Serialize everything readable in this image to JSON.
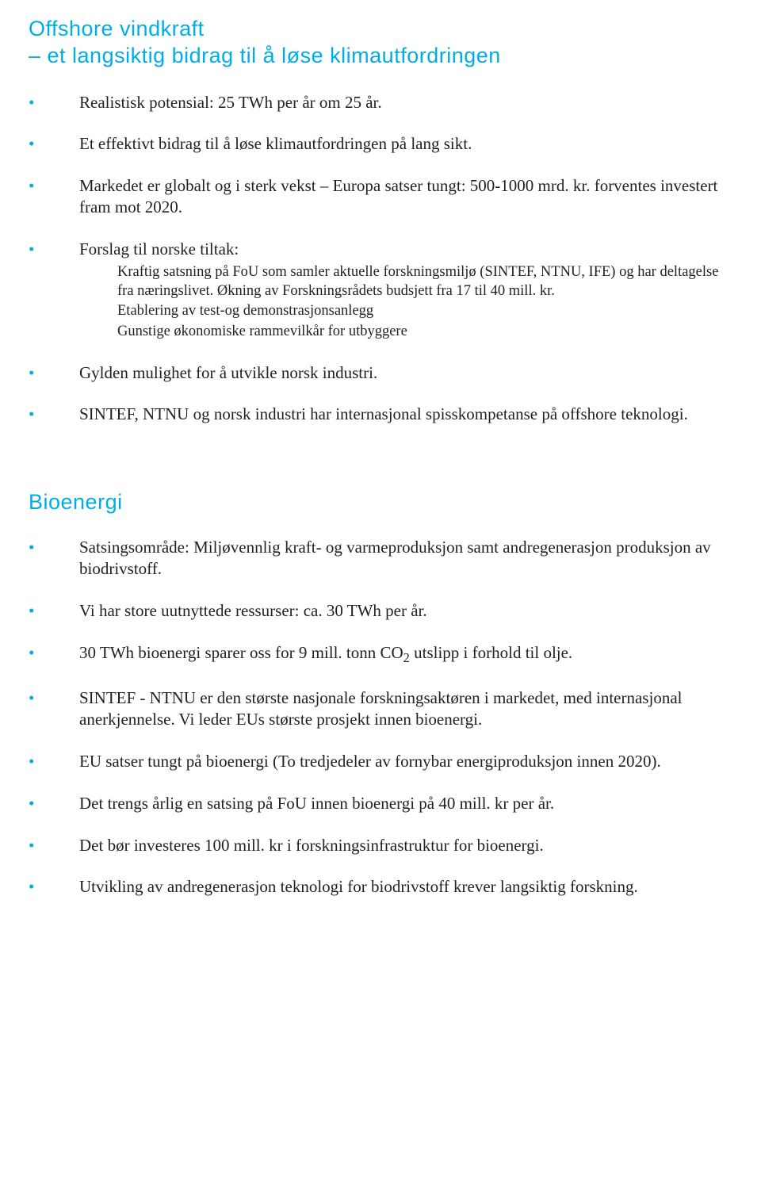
{
  "colors": {
    "accent": "#00aee6",
    "text": "#231f20",
    "background": "#ffffff"
  },
  "typography": {
    "heading_font": "Trebuchet MS",
    "heading_size_pt": 20,
    "body_font": "Georgia",
    "body_size_pt": 16,
    "sub_body_size_pt": 14
  },
  "section1": {
    "title_line1": "Offshore vindkraft",
    "title_line2": "– et langsiktig bidrag til å løse klimautfordringen",
    "items": {
      "i0": "Realistisk potensial: 25 TWh per år om 25 år.",
      "i1": "Et effektivt bidrag til å løse klimautfordringen på lang sikt.",
      "i2": "Markedet er globalt og i sterk vekst – Europa satser tungt: 500-1000 mrd. kr. forventes investert fram mot 2020.",
      "i3": {
        "lead": "Forslag til norske tiltak:",
        "sub0": "Kraftig satsning på FoU som samler aktuelle forskningsmiljø (SINTEF, NTNU, IFE) og har deltagelse fra næringslivet. Økning av Forskningsrådets budsjett fra 17 til 40 mill. kr.",
        "sub1": "Etablering av test-og demonstrasjonsanlegg",
        "sub2": "Gunstige økonomiske rammevilkår for utbyggere"
      },
      "i4": "Gylden mulighet for å utvikle norsk industri.",
      "i5": "SINTEF, NTNU og norsk industri har internasjonal spisskompetanse på offshore teknologi."
    }
  },
  "section2": {
    "title": "Bioenergi",
    "items": {
      "i0": "Satsingsområde: Miljøvennlig kraft- og varmeproduksjon samt andregenerasjon produksjon av biodrivstoff.",
      "i1": "Vi har store uutnyttede ressurser: ca. 30 TWh per år.",
      "i2a": "30 TWh bioenergi sparer oss for 9 mill. tonn CO",
      "i2sub": "2",
      "i2b": " utslipp i forhold til olje.",
      "i3": "SINTEF - NTNU er den største nasjonale forskningsaktøren i markedet, med internasjonal anerkjennelse. Vi leder EUs største prosjekt innen bioenergi.",
      "i4": "EU satser tungt på bioenergi (To tredjedeler av fornybar energiproduksjon innen 2020).",
      "i5": "Det trengs årlig en satsing på FoU innen bioenergi på 40 mill. kr per år.",
      "i6": "Det bør investeres 100 mill. kr i forskningsinfrastruktur for bioenergi.",
      "i7": "Utvikling av andregenerasjon teknologi for biodrivstoff krever langsiktig forskning."
    }
  }
}
